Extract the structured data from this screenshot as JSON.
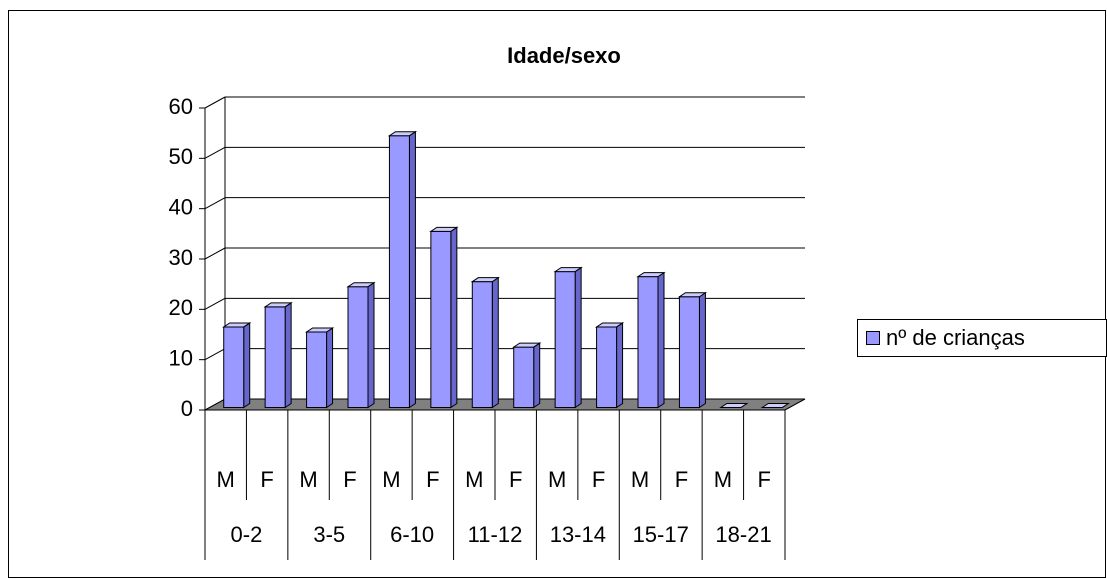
{
  "chart_data": {
    "type": "bar3d",
    "title": "Idade/sexo",
    "categories": [
      "M",
      "F",
      "M",
      "F",
      "M",
      "F",
      "M",
      "F",
      "M",
      "F",
      "M",
      "F",
      "M",
      "F"
    ],
    "groups": [
      "0-2",
      "3-5",
      "6-10",
      "11-12",
      "13-14",
      "15-17",
      "18-21"
    ],
    "series": [
      {
        "name": "nº de crianças",
        "color": "#9999ff",
        "values": [
          16,
          20,
          15,
          24,
          54,
          35,
          25,
          12,
          27,
          16,
          26,
          22,
          0,
          0
        ]
      }
    ],
    "ylim": [
      0,
      60
    ],
    "yticks": [
      0,
      10,
      20,
      30,
      40,
      50,
      60
    ],
    "grid": true,
    "legend": "right"
  }
}
